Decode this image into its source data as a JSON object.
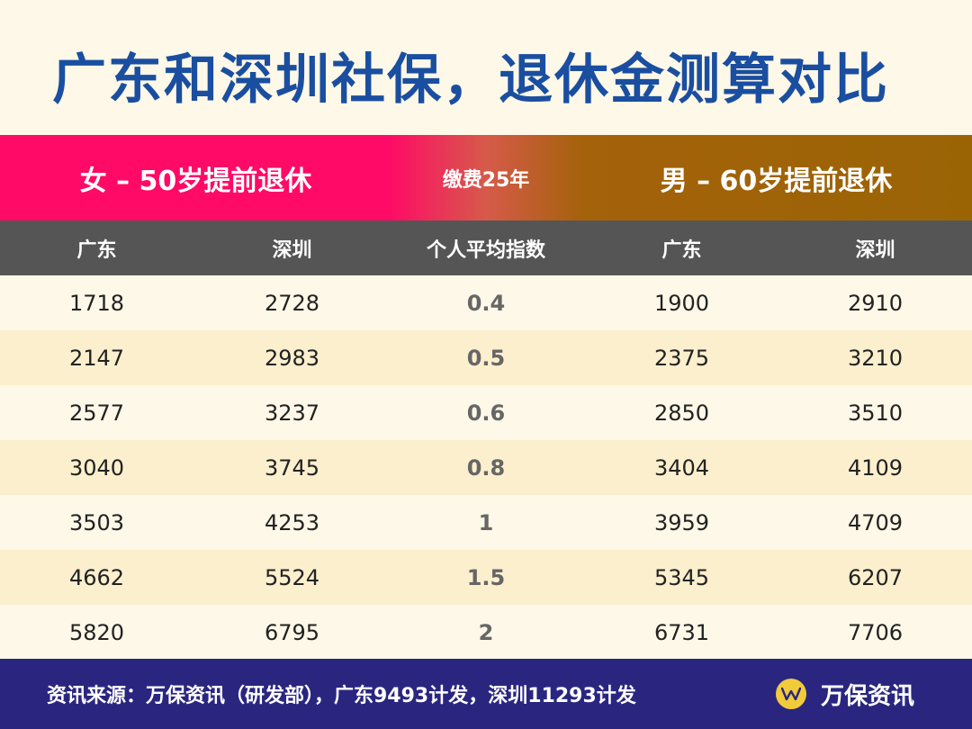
{
  "title": "广东和深圳社保，退休金测算对比",
  "band": {
    "left": "女 – 50岁提前退休",
    "middle": "缴费25年",
    "right": "男 – 60岁提前退休"
  },
  "columns": [
    "广东",
    "深圳",
    "个人平均指数",
    "广东",
    "深圳"
  ],
  "rows": [
    [
      "1718",
      "2728",
      "0.4",
      "1900",
      "2910"
    ],
    [
      "2147",
      "2983",
      "0.5",
      "2375",
      "3210"
    ],
    [
      "2577",
      "3237",
      "0.6",
      "2850",
      "3510"
    ],
    [
      "3040",
      "3745",
      "0.8",
      "3404",
      "4109"
    ],
    [
      "3503",
      "4253",
      "1",
      "3959",
      "4709"
    ],
    [
      "4662",
      "5524",
      "1.5",
      "5345",
      "6207"
    ],
    [
      "5820",
      "6795",
      "2",
      "6731",
      "7706"
    ]
  ],
  "footer": {
    "source": "资讯来源：万保资讯（研发部），广东9493计发，深圳11293计发",
    "brand": "万保资讯",
    "logo_icon": "wanbao-logo-icon"
  },
  "colors": {
    "title": "#1a4ea0",
    "band_left": "#ff0a66",
    "band_right": "#9a6405",
    "header_bg": "#555555",
    "row_light": "#fdf8e7",
    "row_dark": "#fcefcd",
    "footer_bg": "#2a2680",
    "logo": "#f2cb3a"
  }
}
